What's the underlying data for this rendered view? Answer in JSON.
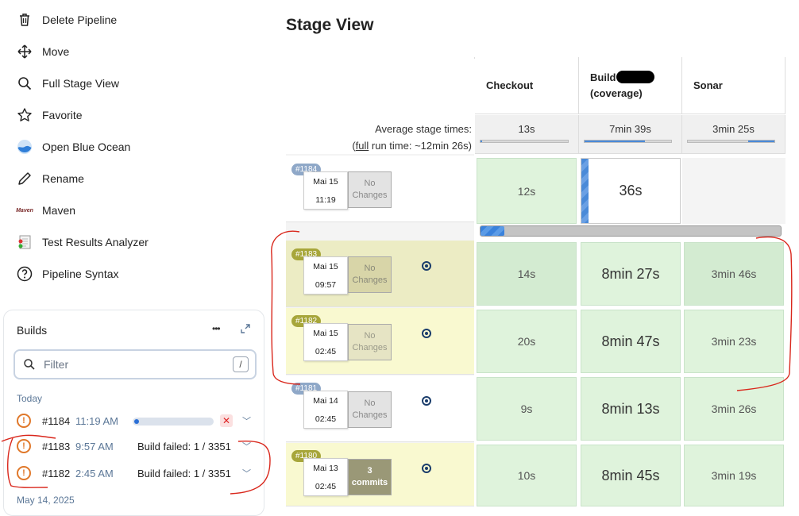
{
  "sidebar": {
    "menu": [
      {
        "label": "Delete Pipeline",
        "icon": "trash-icon"
      },
      {
        "label": "Move",
        "icon": "move-arrows-icon"
      },
      {
        "label": "Full Stage View",
        "icon": "search-icon"
      },
      {
        "label": "Favorite",
        "icon": "star-icon"
      },
      {
        "label": "Open Blue Ocean",
        "icon": "blue-ocean-icon"
      },
      {
        "label": "Rename",
        "icon": "pencil-icon"
      },
      {
        "label": "Maven",
        "icon": "maven-icon"
      },
      {
        "label": "Test Results Analyzer",
        "icon": "test-results-icon"
      },
      {
        "label": "Pipeline Syntax",
        "icon": "help-circle-icon"
      }
    ],
    "maven_logo_text": "Maven",
    "builds": {
      "title": "Builds",
      "more_glyph": "•••",
      "filter_placeholder": "Filter",
      "filter_shortcut": "/",
      "group_today": "Today",
      "group_prev": "May 14, 2025",
      "rows": [
        {
          "number": "#1184",
          "time": "11:19 AM",
          "status": "in-progress",
          "progress": 0.05
        },
        {
          "number": "#1183",
          "time": "9:57 AM",
          "message": "Build failed: 1 / 3351"
        },
        {
          "number": "#1182",
          "time": "2:45 AM",
          "message": "Build failed: 1 / 3351"
        }
      ]
    }
  },
  "stage_view": {
    "title": "Stage View",
    "avg_label": "Average stage times:",
    "full_run_prefix": "(",
    "full_run_link": "full",
    "full_run_suffix": " run time: ~12min 26s)",
    "stages": [
      {
        "name": "Checkout",
        "avg": "13s",
        "avg_fraction": 0.02
      },
      {
        "name": "Build",
        "name_line2": "(coverage)",
        "avg": "7min 39s",
        "avg_fraction": 0.7
      },
      {
        "name": "Sonar",
        "avg": "3min 25s",
        "avg_fraction": 0.3
      }
    ],
    "running_progress": 0.08,
    "runs": [
      {
        "tag": "#1184",
        "date": "Mai 15",
        "time": "11:19",
        "changes": "No Changes",
        "cells": [
          "12s",
          "36s",
          ""
        ]
      },
      {
        "tag": "#1183",
        "date": "Mai 15",
        "time": "09:57",
        "changes": "No Changes",
        "cells": [
          "14s",
          "8min 27s",
          "3min 46s"
        ]
      },
      {
        "tag": "#1182",
        "date": "Mai 15",
        "time": "02:45",
        "changes": "No Changes",
        "cells": [
          "20s",
          "8min 47s",
          "3min 23s"
        ]
      },
      {
        "tag": "#1181",
        "date": "Mai 14",
        "time": "02:45",
        "changes": "No Changes",
        "cells": [
          "9s",
          "8min 13s",
          "3min 26s"
        ]
      },
      {
        "tag": "#1180",
        "date": "Mai 13",
        "time": "02:45",
        "changes_count": "3",
        "changes_unit": "commits",
        "cells": [
          "10s",
          "8min 45s",
          "3min 19s"
        ]
      }
    ]
  },
  "colors": {
    "success_cell": "#dff3dc",
    "success_cell_dark": "#d3ebd1",
    "failed_row": "#f9f9d0",
    "failed_row_dark": "#ececc4",
    "tag_blue": "#8fa8c8",
    "tag_olive": "#a7a63a",
    "progress_blue": "#3a82dc",
    "annotation_red": "#d9271c"
  }
}
